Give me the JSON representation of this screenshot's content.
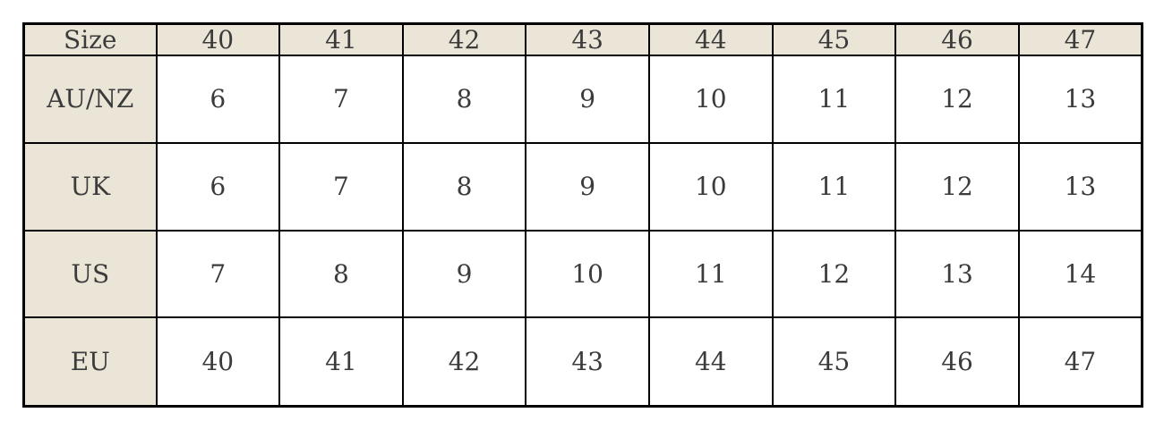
{
  "table": {
    "name": "shoe-size-conversion-table",
    "header": [
      "Size",
      "40",
      "41",
      "42",
      "43",
      "44",
      "45",
      "46",
      "47"
    ],
    "rows": [
      {
        "label": "AU/NZ",
        "values": [
          "6",
          "7",
          "8",
          "9",
          "10",
          "11",
          "12",
          "13"
        ]
      },
      {
        "label": "UK",
        "values": [
          "6",
          "7",
          "8",
          "9",
          "10",
          "11",
          "12",
          "13"
        ]
      },
      {
        "label": "US",
        "values": [
          "7",
          "8",
          "9",
          "10",
          "11",
          "12",
          "13",
          "14"
        ]
      },
      {
        "label": "EU",
        "values": [
          "40",
          "41",
          "42",
          "43",
          "44",
          "45",
          "46",
          "47"
        ]
      }
    ]
  },
  "colors": {
    "header_background": "#ebe5d8",
    "cell_background": "#ffffff",
    "border": "#000000",
    "text": "#3b3b3b",
    "page_background": "#ffffff"
  }
}
